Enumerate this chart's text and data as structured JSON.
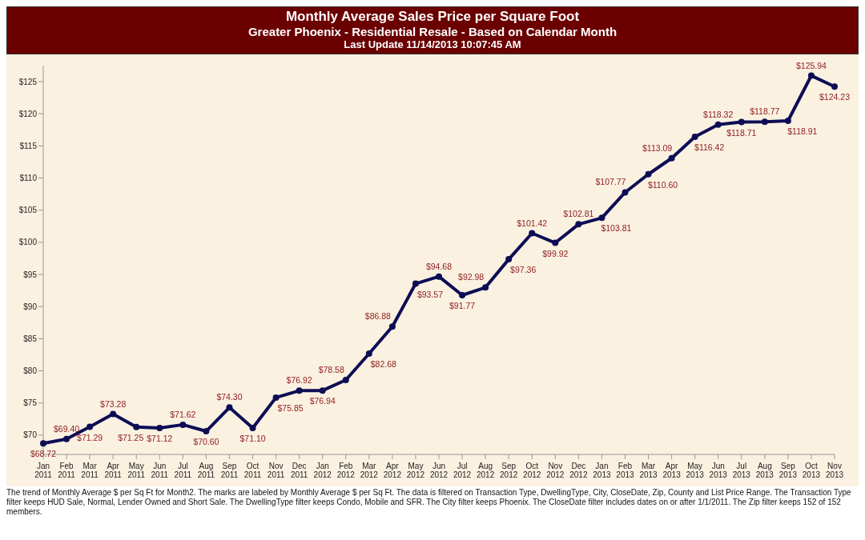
{
  "chart_data": {
    "type": "line",
    "title": "Monthly Average Sales Price per Square Foot",
    "subtitle": "Greater Phoenix - Residential Resale - Based on Calendar Month",
    "annotations": [
      "Last Update 11/14/2013 10:07:45 AM",
      "The trend of Monthly Average $ per Sq Ft for Month2.  The marks are labeled by Monthly Average $ per Sq Ft. The data is filtered on Transaction Type, DwellingType, City, CloseDate, Zip, County and List Price Range. The Transaction Type filter keeps HUD Sale, Normal, Lender Owned and Short Sale. The DwellingType filter keeps Condo, Mobile and SFR. The City filter keeps Phoenix. The CloseDate filter includes dates on or after 1/1/2011. The Zip filter keeps 152 of 152 members."
    ],
    "categories": [
      "Jan 2011",
      "Feb 2011",
      "Mar 2011",
      "Apr 2011",
      "May 2011",
      "Jun 2011",
      "Jul 2011",
      "Aug 2011",
      "Sep 2011",
      "Oct 2011",
      "Nov 2011",
      "Dec 2011",
      "Jan 2012",
      "Feb 2012",
      "Mar 2012",
      "Apr 2012",
      "May 2012",
      "Jun 2012",
      "Jul 2012",
      "Aug 2012",
      "Sep 2012",
      "Oct 2012",
      "Nov 2012",
      "Dec 2012",
      "Jan 2013",
      "Feb 2013",
      "Mar 2013",
      "Apr 2013",
      "May 2013",
      "Jun 2013",
      "Jul 2013",
      "Aug 2013",
      "Sep 2013",
      "Oct 2013",
      "Nov 2013"
    ],
    "series": [
      {
        "color": "#0d0d55",
        "values": [
          68.72,
          69.4,
          71.29,
          73.28,
          71.25,
          71.12,
          71.62,
          70.6,
          74.3,
          71.1,
          75.85,
          76.92,
          76.94,
          78.58,
          82.68,
          86.88,
          93.57,
          94.68,
          91.77,
          92.98,
          97.36,
          101.42,
          99.92,
          102.81,
          103.81,
          107.77,
          110.6,
          113.09,
          116.42,
          118.32,
          118.71,
          118.77,
          118.91,
          125.94,
          124.23
        ],
        "value_labels": [
          "$68.72",
          "$69.40",
          "$71.29",
          "$73.28",
          "$71.25",
          "$71.12",
          "$71.62",
          "$70.60",
          "$74.30",
          "$71.10",
          "$75.85",
          "$76.92",
          "$76.94",
          "$78.58",
          "$82.68",
          "$86.88",
          "$93.57",
          "$94.68",
          "$91.77",
          "$92.98",
          "$97.36",
          "$101.42",
          "$99.92",
          "$102.81",
          "$103.81",
          "$107.77",
          "$110.60",
          "$113.09",
          "$116.42",
          "$118.32",
          "$118.71",
          "$118.77",
          "$118.91",
          "$125.94",
          "$124.23"
        ]
      }
    ],
    "ylim": [
      67,
      127.5
    ],
    "yticks": [
      {
        "value": 70,
        "label": "$70"
      },
      {
        "value": 75,
        "label": "$75"
      },
      {
        "value": 80,
        "label": "$80"
      },
      {
        "value": 85,
        "label": "$85"
      },
      {
        "value": 90,
        "label": "$90"
      },
      {
        "value": 95,
        "label": "$95"
      },
      {
        "value": 100,
        "label": "$100"
      },
      {
        "value": 105,
        "label": "$105"
      },
      {
        "value": 110,
        "label": "$110"
      },
      {
        "value": 115,
        "label": "$115"
      },
      {
        "value": 120,
        "label": "$120"
      },
      {
        "value": 125,
        "label": "$125"
      }
    ],
    "grid": false,
    "legend": false,
    "marker": "circle",
    "line_style": "solid"
  }
}
